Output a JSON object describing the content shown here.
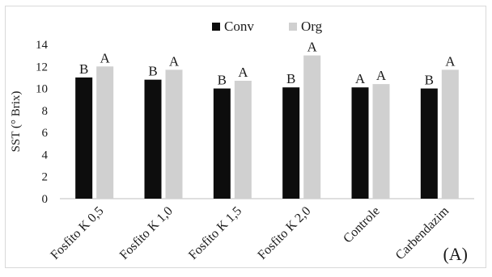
{
  "chart_data": {
    "type": "bar",
    "categories": [
      "Fosfito K 0,5",
      "Fosfito K 1,0",
      "Fosfito K 1,5",
      "Fosfito K 2,0",
      "Controle",
      "Carbendazim"
    ],
    "series": [
      {
        "name": "Conv",
        "color": "#0d0d0d",
        "values": [
          11.0,
          10.8,
          10.0,
          10.1,
          10.1,
          10.0
        ],
        "letters": [
          "B",
          "B",
          "B",
          "B",
          "A",
          "B"
        ]
      },
      {
        "name": "Org",
        "color": "#d0d0d0",
        "values": [
          12.0,
          11.7,
          10.7,
          13.0,
          10.4,
          11.7
        ],
        "letters": [
          "A",
          "A",
          "A",
          "A",
          "A",
          "A"
        ]
      }
    ],
    "ylabel": "SST (° Brix)",
    "xlabel": "",
    "ylim": [
      0,
      14
    ],
    "yticks": [
      0,
      2,
      4,
      6,
      8,
      10,
      12,
      14
    ],
    "grid": false,
    "legend_position": "top-center",
    "panel_label": "(A)"
  }
}
